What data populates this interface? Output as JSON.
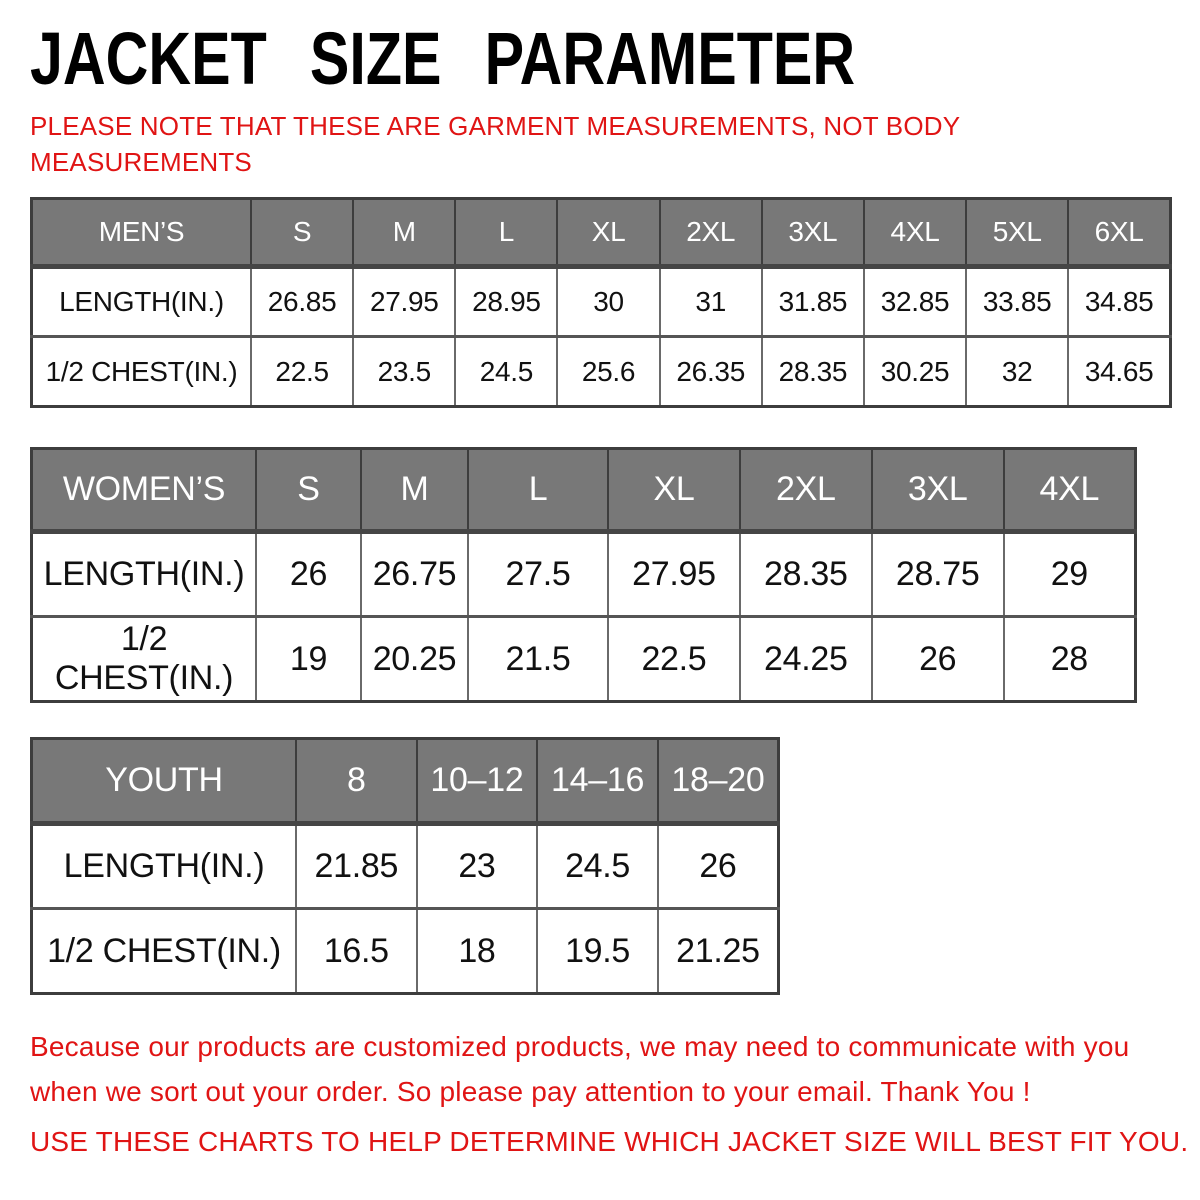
{
  "colors": {
    "accent_red": "#e01414",
    "header_gray": "#787878",
    "border_dark": "#3d3d3d"
  },
  "header": {
    "title": "JACKET SIZE PARAMETER",
    "note": "PLEASE NOTE THAT THESE ARE GARMENT MEASUREMENTS, NOT BODY\nMEASUREMENTS"
  },
  "tables": [
    {
      "name": "mens",
      "header": [
        "MEN’S",
        "S",
        "M",
        "L",
        "XL",
        "2XL",
        "3XL",
        "4XL",
        "5XL",
        "6XL"
      ],
      "rows": [
        [
          "LENGTH(IN.)",
          "26.85",
          "27.95",
          "28.95",
          "30",
          "31",
          "31.85",
          "32.85",
          "33.85",
          "34.85"
        ],
        [
          "1/2 CHEST(IN.)",
          "22.5",
          "23.5",
          "24.5",
          "25.6",
          "26.35",
          "28.35",
          "30.25",
          "32",
          "34.65"
        ]
      ]
    },
    {
      "name": "womens",
      "header": [
        "WOMEN’S",
        "S",
        "M",
        "L",
        "XL",
        "2XL",
        "3XL",
        "4XL"
      ],
      "rows": [
        [
          "LENGTH(IN.)",
          "26",
          "26.75",
          "27.5",
          "27.95",
          "28.35",
          "28.75",
          "29"
        ],
        [
          "1/2 CHEST(IN.)",
          "19",
          "20.25",
          "21.5",
          "22.5",
          "24.25",
          "26",
          "28"
        ]
      ]
    },
    {
      "name": "youth",
      "header": [
        "YOUTH",
        "8",
        "10–12",
        "14–16",
        "18–20"
      ],
      "rows": [
        [
          "LENGTH(IN.)",
          "21.85",
          "23",
          "24.5",
          "26"
        ],
        [
          "1/2 CHEST(IN.)",
          "16.5",
          "18",
          "19.5",
          "21.25"
        ]
      ]
    }
  ],
  "footer": {
    "message": "Because our products are customized products, we may need to communicate with you\nwhen we sort out your order. So please pay attention to your email. Thank You !",
    "cta": "USE THESE CHARTS TO HELP DETERMINE WHICH JACKET SIZE WILL BEST FIT YOU."
  }
}
